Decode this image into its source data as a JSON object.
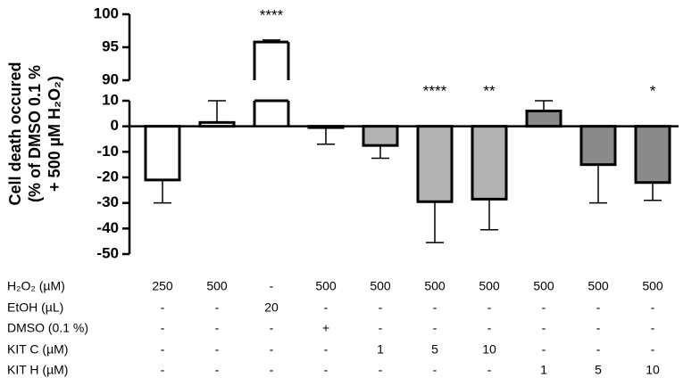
{
  "chart_data": {
    "type": "bar",
    "y_label": [
      "Cell death occured",
      "(% of DMSO 0.1 %",
      "+ 500 µM H₂O₂)"
    ],
    "ylim": [
      -50,
      100
    ],
    "axis_break": [
      10,
      90
    ],
    "yticks": [
      -50,
      -40,
      -30,
      -20,
      -10,
      0,
      10,
      90,
      95,
      100
    ],
    "values": [
      -21,
      1.5,
      95.8,
      -0.5,
      -7.5,
      -29.5,
      -28.5,
      6,
      -15,
      -22
    ],
    "errors": [
      9,
      8.5,
      0.3,
      6.5,
      5,
      16,
      12,
      4,
      15,
      7
    ],
    "colors": [
      "#ffffff",
      "#ffffff",
      "#ffffff",
      "#b3b3b3",
      "#b3b3b3",
      "#b3b3b3",
      "#b3b3b3",
      "#8a8a8a",
      "#8a8a8a",
      "#8a8a8a"
    ],
    "significance": [
      null,
      null,
      "****",
      null,
      null,
      "****",
      "**",
      null,
      null,
      "*"
    ],
    "conditions": [
      {
        "label": "H₂O₂ (µM)",
        "values": [
          "250",
          "500",
          "-",
          "500",
          "500",
          "500",
          "500",
          "500",
          "500",
          "500"
        ]
      },
      {
        "label": "EtOH (µL)",
        "values": [
          "-",
          "-",
          "20",
          "-",
          "-",
          "-",
          "-",
          "-",
          "-",
          "-"
        ]
      },
      {
        "label": "DMSO (0.1 %)",
        "values": [
          "-",
          "-",
          "-",
          "+",
          "-",
          "-",
          "-",
          "-",
          "-",
          "-"
        ]
      },
      {
        "label": "KIT C (µM)",
        "values": [
          "-",
          "-",
          "-",
          "-",
          "1",
          "5",
          "10",
          "-",
          "-",
          "-"
        ]
      },
      {
        "label": "KIT H (µM)",
        "values": [
          "-",
          "-",
          "-",
          "-",
          "-",
          "-",
          "-",
          "1",
          "5",
          "10"
        ]
      }
    ]
  }
}
